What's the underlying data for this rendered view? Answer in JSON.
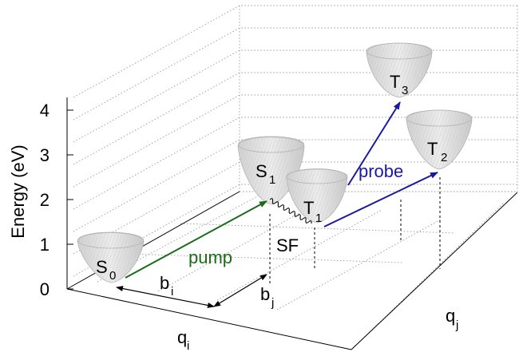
{
  "axis": {
    "energy_label": "Energy (eV)",
    "ticks": [
      "0",
      "1",
      "2",
      "3",
      "4"
    ],
    "qi": "q",
    "qi_sub": "i",
    "qj": "q",
    "qj_sub": "j"
  },
  "states": {
    "s0": {
      "main": "S",
      "sub": "0"
    },
    "s1": {
      "main": "S",
      "sub": "1"
    },
    "t1": {
      "main": "T",
      "sub": "1"
    },
    "t2": {
      "main": "T",
      "sub": "2"
    },
    "t3": {
      "main": "T",
      "sub": "3"
    }
  },
  "labels": {
    "pump": "pump",
    "probe": "probe",
    "sf": "SF",
    "bi": "b",
    "bi_sub": "i",
    "bj": "b",
    "bj_sub": "j"
  },
  "colors": {
    "pump": "#1a6b1a",
    "probe": "#1a1aa0"
  }
}
